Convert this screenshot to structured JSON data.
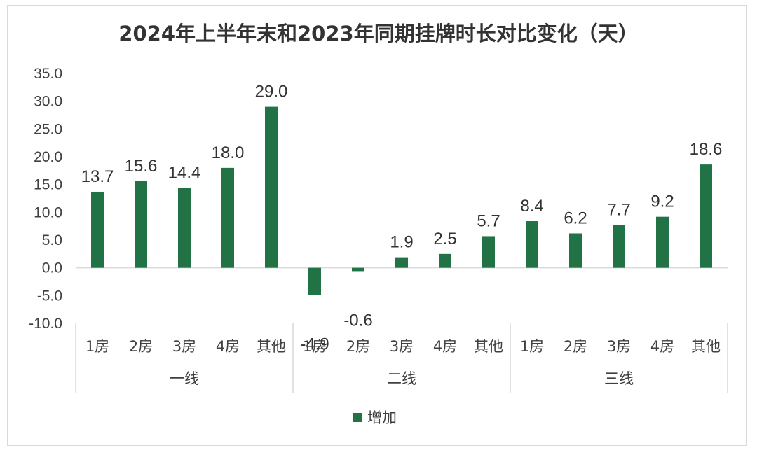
{
  "chart_data": {
    "type": "bar",
    "title": "2024年上半年末和2023年同期挂牌时长对比变化（天）",
    "ylim": [
      -10,
      35
    ],
    "yticks": [
      "35.0",
      "30.0",
      "25.0",
      "20.0",
      "15.0",
      "10.0",
      "5.0",
      "0.0",
      "-5.0",
      "-10.0"
    ],
    "ytick_values": [
      35,
      30,
      25,
      20,
      15,
      10,
      5,
      0,
      -5,
      -10
    ],
    "groups": [
      {
        "name": "一线",
        "categories": [
          "1房",
          "2房",
          "3房",
          "4房",
          "其他"
        ]
      },
      {
        "name": "二线",
        "categories": [
          "1房",
          "2房",
          "3房",
          "4房",
          "其他"
        ]
      },
      {
        "name": "三线",
        "categories": [
          "1房",
          "2房",
          "3房",
          "4房",
          "其他"
        ]
      }
    ],
    "series": [
      {
        "name": "增加",
        "color": "#217346",
        "values": [
          13.7,
          15.6,
          14.4,
          18.0,
          29.0,
          -4.9,
          -0.6,
          1.9,
          2.5,
          5.7,
          8.4,
          6.2,
          7.7,
          9.2,
          18.6
        ],
        "labels": [
          "13.7",
          "15.6",
          "14.4",
          "18.0",
          "29.0",
          "-4.9",
          "-0.6",
          "1.9",
          "2.5",
          "5.7",
          "8.4",
          "6.2",
          "7.7",
          "9.2",
          "18.6"
        ]
      }
    ],
    "legend": "bottom-center"
  }
}
